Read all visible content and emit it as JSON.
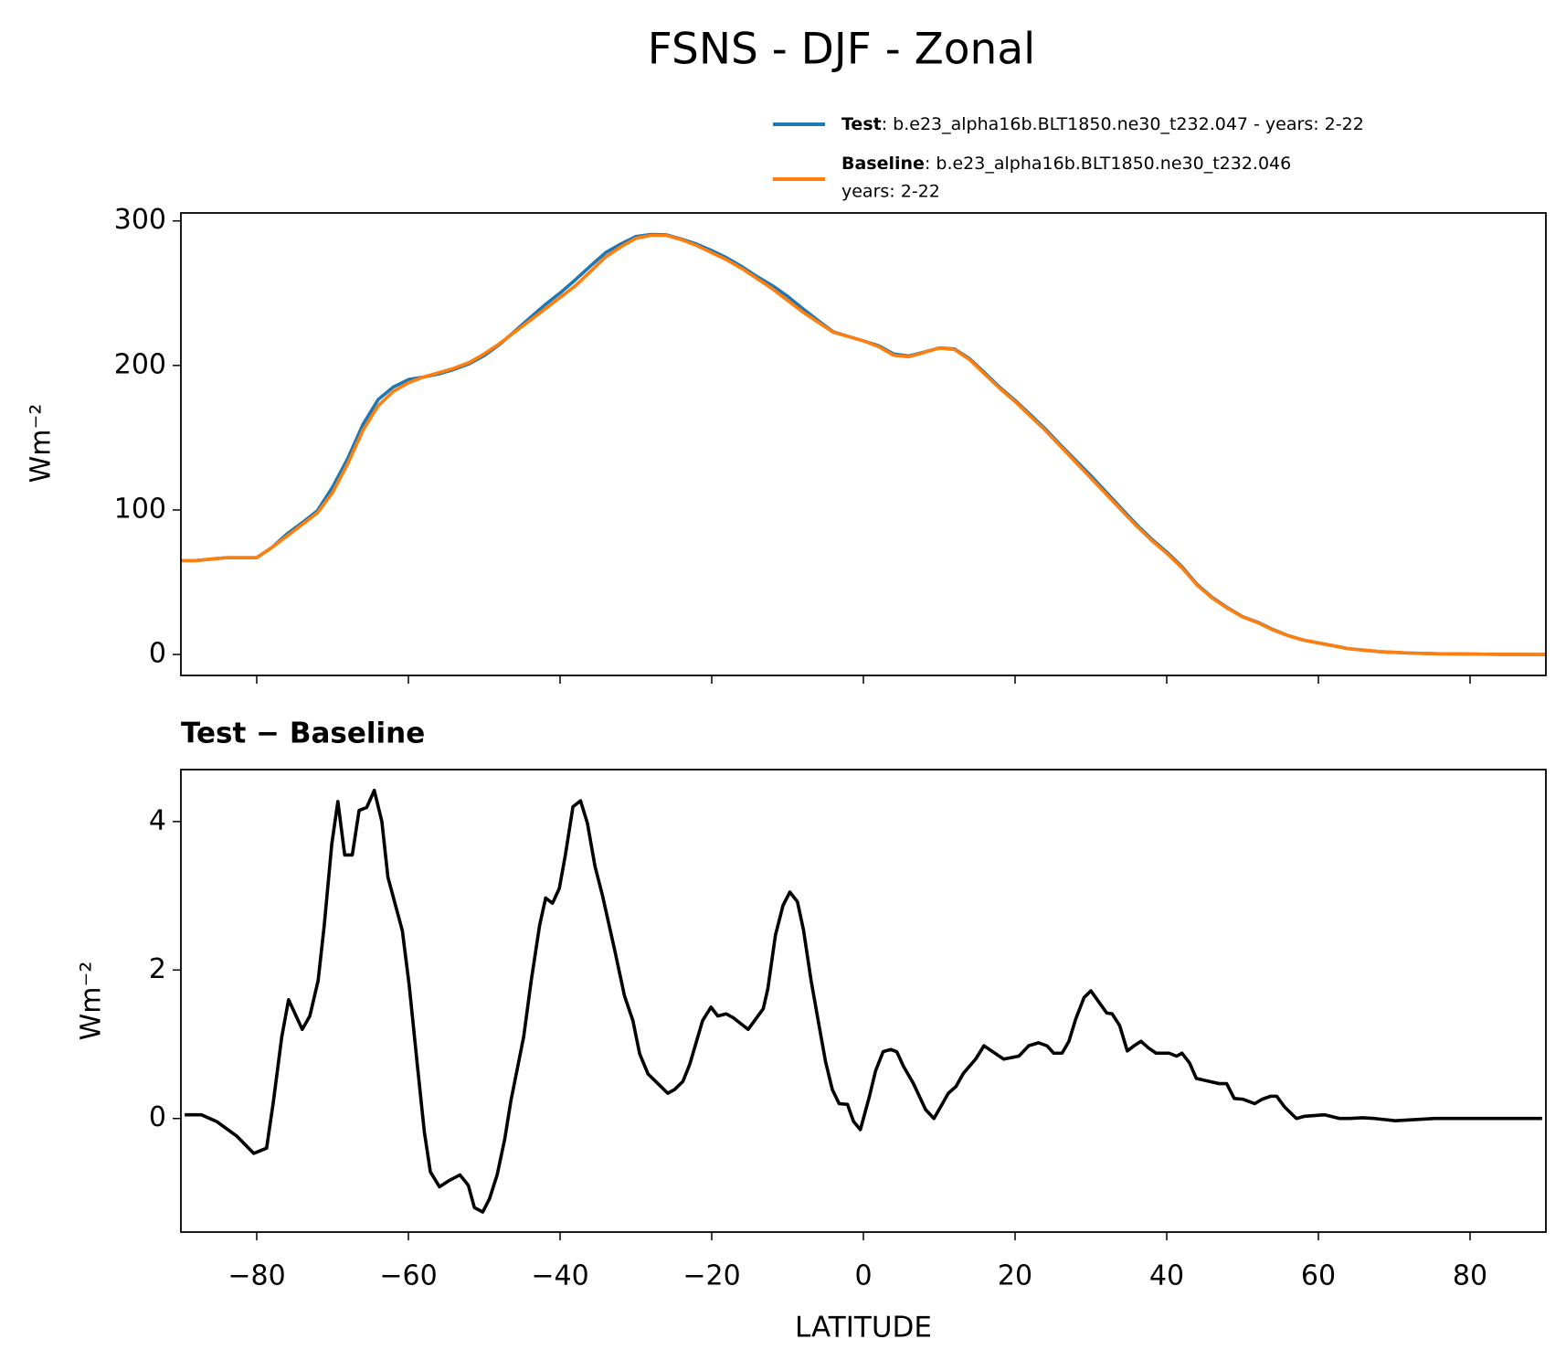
{
  "title": "FSNS - DJF - Zonal",
  "chart_data": [
    {
      "type": "line",
      "ylabel": "Wm⁻²",
      "xlim": [
        -90,
        90
      ],
      "ylim": [
        -14.5,
        305.5
      ],
      "yticks": [
        0,
        100,
        200,
        300
      ],
      "x": [
        -90,
        -88,
        -86,
        -84,
        -82,
        -80,
        -78,
        -76,
        -74,
        -72,
        -70,
        -68,
        -66,
        -64,
        -62,
        -60,
        -58,
        -56,
        -54,
        -52,
        -50,
        -48,
        -46,
        -44,
        -42,
        -40,
        -38,
        -36,
        -34,
        -32,
        -30,
        -28,
        -26,
        -24,
        -22,
        -20,
        -18,
        -16,
        -14,
        -12,
        -10,
        -8,
        -6,
        -4,
        -2,
        0,
        2,
        4,
        6,
        8,
        10,
        12,
        14,
        16,
        18,
        20,
        22,
        24,
        26,
        28,
        30,
        32,
        34,
        36,
        38,
        40,
        42,
        44,
        46,
        48,
        50,
        52,
        54,
        56,
        58,
        60,
        62,
        64,
        66,
        68,
        70,
        72,
        74,
        76,
        78,
        80,
        82,
        84,
        86,
        88,
        90
      ],
      "series": [
        {
          "name": "Test",
          "description": ": b.e23_alpha16b.BLT1850.ne30_t232.047 - years: 2-22",
          "color": "#1f77b4",
          "values": [
            65,
            65,
            66,
            67,
            67,
            67,
            74,
            83.5,
            91.2,
            99.5,
            115.8,
            135.6,
            159.1,
            176.3,
            185,
            190.2,
            192,
            194.1,
            197.2,
            201.1,
            206.8,
            214.4,
            223.5,
            232.8,
            241.9,
            250.1,
            259.2,
            268.8,
            278,
            284,
            289.2,
            290.6,
            290.4,
            287.4,
            284,
            279.5,
            274.4,
            268.3,
            261.4,
            255.2,
            247.9,
            239.3,
            231.2,
            223.3,
            220.1,
            217,
            213.7,
            207.9,
            206.5,
            209.2,
            212.1,
            211.4,
            204.7,
            194.9,
            184.8,
            175.8,
            166,
            156,
            144.9,
            134.3,
            123.7,
            112.4,
            101.2,
            90,
            79.9,
            70.9,
            60.8,
            48.5,
            39.5,
            32.4,
            26.2,
            22.3,
            17.3,
            13.1,
            10,
            8,
            6,
            4,
            3,
            2,
            1.5,
            1,
            0.7,
            0.5,
            0.4,
            0.3,
            0.2,
            0.1,
            0.1,
            0,
            0
          ]
        },
        {
          "name": "Baseline",
          "description": ": b.e23_alpha16b.BLT1850.ne30_t232.046",
          "description2": "years: 2-22",
          "color": "#ff7f0e",
          "values": [
            65,
            65,
            66,
            67,
            67,
            67,
            74,
            82,
            90,
            98,
            112,
            132,
            155,
            172,
            182,
            188,
            192,
            195,
            198,
            202,
            208,
            215,
            223,
            231,
            239,
            247,
            255,
            265,
            275,
            282,
            288,
            290,
            290,
            287,
            283,
            278,
            273,
            267,
            260,
            253,
            245,
            237,
            230,
            223,
            220,
            217,
            213,
            207,
            206,
            209,
            212,
            211,
            204,
            194,
            184,
            175,
            165,
            155,
            144,
            133,
            122,
            111,
            100,
            89,
            79,
            70,
            60,
            48,
            39,
            32,
            26,
            22,
            17,
            13,
            10,
            8,
            6,
            4,
            3,
            2,
            1.5,
            1,
            0.7,
            0.5,
            0.4,
            0.3,
            0.2,
            0.1,
            0.1,
            0,
            0
          ]
        }
      ]
    },
    {
      "type": "line",
      "title": "Test − Baseline",
      "ylabel": "Wm⁻²",
      "xlabel": "LATITUDE",
      "xlim": [
        -90,
        90
      ],
      "ylim": [
        -1.53,
        4.7
      ],
      "yticks": [
        0,
        2,
        4
      ],
      "xticks": [
        {
          "value": -80,
          "label": "−80"
        },
        {
          "value": -60,
          "label": "−60"
        },
        {
          "value": -40,
          "label": "−40"
        },
        {
          "value": -20,
          "label": "−20"
        },
        0,
        20,
        40,
        60,
        80
      ],
      "x": [
        -89.5,
        -87.3,
        -85.3,
        -82.6,
        -80.4,
        -78.7,
        -77.8,
        -76.7,
        -75.8,
        -74.0,
        -73.0,
        -71.9,
        -71.1,
        -70.1,
        -69.3,
        -68.4,
        -67.4,
        -66.5,
        -65.5,
        -64.5,
        -63.5,
        -62.7,
        -60.8,
        -59.9,
        -58.8,
        -57.9,
        -57.1,
        -55.9,
        -54.7,
        -53.2,
        -52.1,
        -51.3,
        -50.2,
        -49.3,
        -48.3,
        -47.3,
        -46.5,
        -44.8,
        -43.8,
        -42.7,
        -41.9,
        -41.0,
        -40.1,
        -39.3,
        -38.3,
        -37.3,
        -36.4,
        -35.4,
        -34.4,
        -32.8,
        -31.5,
        -30.4,
        -29.5,
        -28.4,
        -27.1,
        -25.8,
        -24.9,
        -23.8,
        -22.9,
        -21.2,
        -20.1,
        -19.2,
        -18.1,
        -17.2,
        -15.2,
        -13.2,
        -12.6,
        -11.6,
        -10.6,
        -9.7,
        -8.7,
        -7.9,
        -6.9,
        -6.0,
        -5.0,
        -4.1,
        -3.2,
        -2.1,
        -1.3,
        -0.4,
        0.8,
        1.6,
        2.6,
        3.6,
        4.4,
        5.3,
        6.6,
        8.2,
        9.3,
        10.2,
        11.2,
        12.2,
        13.2,
        14.8,
        15.9,
        16.9,
        18.5,
        20.5,
        21.8,
        23.1,
        24.2,
        25.1,
        26.2,
        27.1,
        28.0,
        29.1,
        30.0,
        30.9,
        32.1,
        32.8,
        33.8,
        34.8,
        35.7,
        36.6,
        37.6,
        38.6,
        40.3,
        41.3,
        42.0,
        43.0,
        43.9,
        45.6,
        46.9,
        47.9,
        48.9,
        50.0,
        51.6,
        52.6,
        53.7,
        54.5,
        55.5,
        57.1,
        58.2,
        60.8,
        62.8,
        64.1,
        65.8,
        67.4,
        70.1,
        75.4,
        89.5
      ],
      "series": [
        {
          "name": "Test − Baseline",
          "color": "#000000",
          "values": [
            0.05,
            0.05,
            -0.04,
            -0.24,
            -0.47,
            -0.4,
            0.23,
            1.1,
            1.6,
            1.2,
            1.38,
            1.86,
            2.6,
            3.7,
            4.27,
            3.55,
            3.55,
            4.15,
            4.19,
            4.42,
            4.0,
            3.25,
            2.53,
            1.8,
            0.7,
            -0.18,
            -0.72,
            -0.92,
            -0.84,
            -0.76,
            -0.9,
            -1.2,
            -1.26,
            -1.08,
            -0.76,
            -0.28,
            0.23,
            1.1,
            1.86,
            2.6,
            2.97,
            2.9,
            3.1,
            3.55,
            4.2,
            4.28,
            3.98,
            3.4,
            3.0,
            2.27,
            1.65,
            1.32,
            0.87,
            0.6,
            0.47,
            0.34,
            0.39,
            0.5,
            0.73,
            1.32,
            1.5,
            1.38,
            1.41,
            1.36,
            1.2,
            1.48,
            1.75,
            2.47,
            2.87,
            3.05,
            2.92,
            2.54,
            1.86,
            1.34,
            0.77,
            0.39,
            0.2,
            0.19,
            -0.04,
            -0.15,
            0.3,
            0.64,
            0.9,
            0.93,
            0.9,
            0.7,
            0.47,
            0.12,
            0,
            0.16,
            0.34,
            0.43,
            0.61,
            0.8,
            0.98,
            0.91,
            0.8,
            0.84,
            0.98,
            1.02,
            0.98,
            0.88,
            0.88,
            1.04,
            1.34,
            1.63,
            1.72,
            1.59,
            1.42,
            1.41,
            1.25,
            0.91,
            0.98,
            1.04,
            0.95,
            0.88,
            0.88,
            0.84,
            0.88,
            0.75,
            0.54,
            0.5,
            0.47,
            0.47,
            0.27,
            0.26,
            0.2,
            0.26,
            0.3,
            0.3,
            0.16,
            0,
            0.03,
            0.05,
            0,
            0,
            0.01,
            0,
            -0.03,
            0,
            0
          ]
        }
      ]
    }
  ]
}
